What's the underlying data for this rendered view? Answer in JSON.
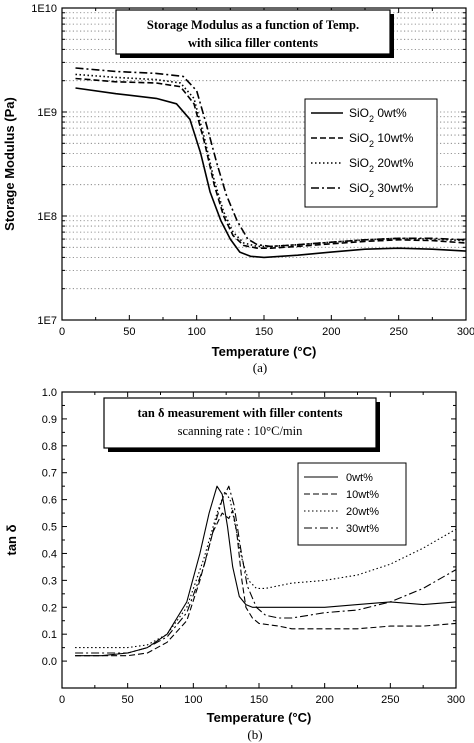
{
  "chart_data": [
    {
      "type": "line",
      "title": "Storage Modulus as a function of Temp.",
      "subtitle": "with silica filler contents",
      "xlabel": "Temperature (°C)",
      "ylabel": "Storage Modulus (Pa)",
      "yscale": "log",
      "xlim": [
        0,
        300
      ],
      "ylim": [
        10000000.0,
        10000000000.0
      ],
      "xticks": [
        "0",
        "50",
        "100",
        "150",
        "200",
        "250",
        "300"
      ],
      "yticks": [
        "1E7",
        "1E8",
        "1E9",
        "1E10"
      ],
      "grid": "dotted horizontal minor gridlines",
      "legend_position": "right",
      "caption": "(a)",
      "series": [
        {
          "name": "SiO2 0wt%",
          "legend_main": "SiO",
          "legend_sub": "2",
          "legend_tail": " 0wt%",
          "dash": "solid",
          "x": [
            10,
            40,
            70,
            85,
            95,
            103,
            110,
            118,
            125,
            132,
            140,
            150,
            175,
            200,
            225,
            250,
            275,
            300
          ],
          "y": [
            1700000000.0,
            1500000000.0,
            1350000000.0,
            1200000000.0,
            850000000.0,
            400000000.0,
            170000000.0,
            90000000.0,
            60000000.0,
            45000000.0,
            41000000.0,
            40000000.0,
            42000000.0,
            45000000.0,
            48000000.0,
            49000000.0,
            48000000.0,
            46000000.0
          ]
        },
        {
          "name": "SiO2 10wt%",
          "legend_main": "SiO",
          "legend_sub": "2",
          "legend_tail": " 10wt%",
          "dash": "dashed",
          "x": [
            10,
            40,
            70,
            88,
            98,
            106,
            113,
            120,
            127,
            135,
            145,
            155,
            175,
            200,
            225,
            250,
            275,
            300
          ],
          "y": [
            2100000000.0,
            1950000000.0,
            1900000000.0,
            1750000000.0,
            1200000000.0,
            500000000.0,
            200000000.0,
            100000000.0,
            65000000.0,
            52000000.0,
            49000000.0,
            49000000.0,
            51000000.0,
            54000000.0,
            57000000.0,
            59000000.0,
            58000000.0,
            55000000.0
          ]
        },
        {
          "name": "SiO2 20wt%",
          "legend_main": "SiO",
          "legend_sub": "2",
          "legend_tail": " 20wt%",
          "dash": "dotted",
          "x": [
            10,
            40,
            70,
            88,
            98,
            106,
            113,
            120,
            127,
            135,
            145,
            155,
            175,
            200,
            225,
            250,
            275,
            300
          ],
          "y": [
            2300000000.0,
            2150000000.0,
            2050000000.0,
            1900000000.0,
            1350000000.0,
            550000000.0,
            220000000.0,
            110000000.0,
            70000000.0,
            55000000.0,
            51000000.0,
            51000000.0,
            53000000.0,
            56000000.0,
            59000000.0,
            61000000.0,
            60000000.0,
            58000000.0
          ]
        },
        {
          "name": "SiO2 30wt%",
          "legend_main": "SiO",
          "legend_sub": "2",
          "legend_tail": " 30wt%",
          "dash": "dashdot",
          "x": [
            10,
            40,
            70,
            90,
            100,
            108,
            115,
            122,
            130,
            138,
            145,
            155,
            175,
            200,
            225,
            250,
            275,
            300
          ],
          "y": [
            2650000000.0,
            2450000000.0,
            2350000000.0,
            2200000000.0,
            1600000000.0,
            700000000.0,
            320000000.0,
            160000000.0,
            90000000.0,
            60000000.0,
            53000000.0,
            51000000.0,
            53000000.0,
            56000000.0,
            59000000.0,
            61000000.0,
            61000000.0,
            59000000.0
          ]
        }
      ]
    },
    {
      "type": "line",
      "title": "tan δ measurement with filler contents",
      "subtitle": "scanning rate : 10°C/min",
      "xlabel": "Temperature (°C)",
      "ylabel": "tan δ",
      "yscale": "linear",
      "xlim": [
        0,
        300
      ],
      "ylim": [
        -0.1,
        1.0
      ],
      "xticks": [
        "0",
        "50",
        "100",
        "150",
        "200",
        "250",
        "300"
      ],
      "yticks": [
        "0.0",
        "0.1",
        "0.2",
        "0.3",
        "0.4",
        "0.5",
        "0.6",
        "0.7",
        "0.8",
        "0.9",
        "1.0"
      ],
      "grid": "off",
      "legend_position": "right",
      "caption": "(b)",
      "series": [
        {
          "name": "0wt%",
          "dash": "solid",
          "x": [
            10,
            30,
            50,
            65,
            80,
            95,
            105,
            112,
            118,
            122,
            126,
            130,
            135,
            140,
            145,
            150,
            175,
            200,
            225,
            250,
            275,
            300
          ],
          "y": [
            0.02,
            0.02,
            0.03,
            0.05,
            0.1,
            0.22,
            0.4,
            0.55,
            0.65,
            0.62,
            0.5,
            0.35,
            0.24,
            0.21,
            0.2,
            0.2,
            0.2,
            0.2,
            0.21,
            0.22,
            0.21,
            0.22
          ]
        },
        {
          "name": "10wt%",
          "dash": "dashed",
          "x": [
            10,
            30,
            50,
            65,
            80,
            95,
            105,
            115,
            122,
            127,
            130,
            133,
            137,
            140,
            145,
            150,
            165,
            175,
            200,
            225,
            250,
            275,
            300
          ],
          "y": [
            0.02,
            0.02,
            0.02,
            0.03,
            0.07,
            0.15,
            0.3,
            0.48,
            0.55,
            0.53,
            0.56,
            0.48,
            0.3,
            0.2,
            0.16,
            0.14,
            0.13,
            0.12,
            0.12,
            0.12,
            0.13,
            0.13,
            0.14
          ]
        },
        {
          "name": "20wt%",
          "dash": "dotted",
          "x": [
            10,
            30,
            50,
            65,
            80,
            95,
            108,
            118,
            124,
            128,
            132,
            137,
            142,
            148,
            155,
            175,
            200,
            225,
            250,
            275,
            300
          ],
          "y": [
            0.05,
            0.05,
            0.05,
            0.06,
            0.1,
            0.2,
            0.38,
            0.55,
            0.63,
            0.6,
            0.5,
            0.38,
            0.3,
            0.27,
            0.27,
            0.29,
            0.3,
            0.32,
            0.36,
            0.42,
            0.49
          ]
        },
        {
          "name": "30wt%",
          "dash": "dashdot",
          "x": [
            10,
            30,
            50,
            65,
            80,
            95,
            108,
            116,
            122,
            127,
            131,
            136,
            141,
            148,
            155,
            165,
            175,
            200,
            225,
            250,
            275,
            300
          ],
          "y": [
            0.03,
            0.03,
            0.03,
            0.05,
            0.09,
            0.18,
            0.35,
            0.5,
            0.6,
            0.65,
            0.58,
            0.42,
            0.28,
            0.2,
            0.17,
            0.16,
            0.16,
            0.18,
            0.19,
            0.22,
            0.27,
            0.34
          ]
        }
      ]
    }
  ]
}
